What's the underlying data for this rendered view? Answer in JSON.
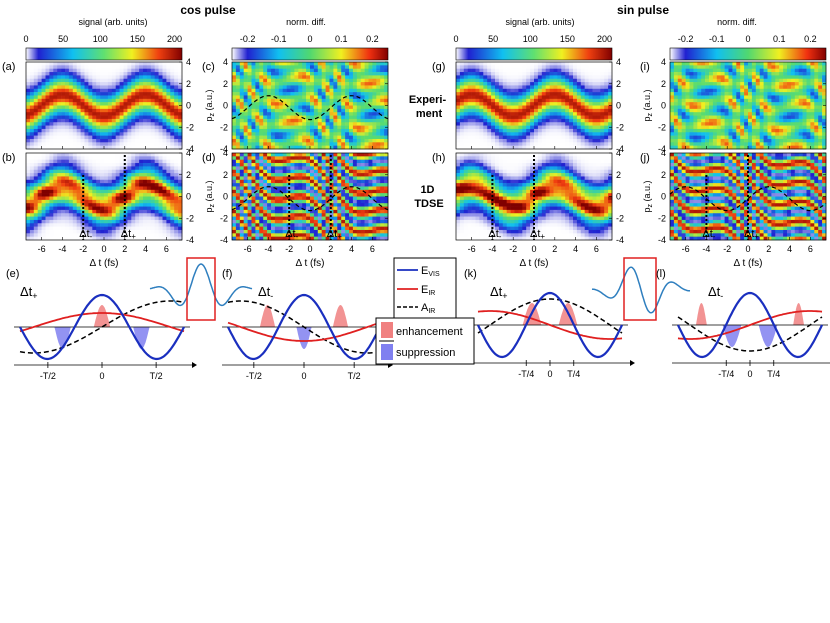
{
  "figure": {
    "title_cos": "cos pulse",
    "title_sin": "sin pulse",
    "row_label_exp": "Experi-\nment",
    "row_label_tdse": "1D\nTDSE"
  },
  "colorbars": {
    "signal": {
      "label": "signal (arb. units)",
      "ticks": [
        "0",
        "50",
        "100",
        "150",
        "200"
      ],
      "range": [
        0,
        210
      ]
    },
    "diff": {
      "label": "norm. diff.",
      "ticks": [
        "-0.2",
        "-0.1",
        "0",
        "0.1",
        "0.2"
      ],
      "range": [
        -0.25,
        0.25
      ]
    }
  },
  "panel_labels": [
    "(a)",
    "(b)",
    "(c)",
    "(d)",
    "(e)",
    "(f)",
    "(g)",
    "(h)",
    "(i)",
    "(j)",
    "(k)",
    "(l)"
  ],
  "axes": {
    "x_ticks": [
      "-6",
      "-4",
      "-2",
      "0",
      "2",
      "4",
      "6"
    ],
    "x_label": "Δ t (fs)",
    "y_ticks": [
      "4",
      "2",
      "0",
      "-2",
      "-4"
    ],
    "y_label": "p",
    "y_label_sub": "z",
    "y_label_unit": " (a.u.)"
  },
  "markers": {
    "dt_minus": "Δt",
    "dt_minus_sub": "-",
    "dt_plus": "Δt",
    "dt_plus_sub": "+"
  },
  "schematic": {
    "ticks_cos": [
      "-T/2",
      "0",
      "T/2"
    ],
    "ticks_sin": [
      "-T/4",
      "0",
      "T/4"
    ]
  },
  "legend": {
    "evis": "E",
    "evis_sub": "VIS",
    "eir": "E",
    "eir_sub": "IR",
    "air": "A",
    "air_sub": "IR",
    "enhancement": "enhancement",
    "suppression": "suppression"
  },
  "colors": {
    "evis": "#1a2fbf",
    "eir": "#e02020",
    "air": "#000000",
    "enhancement": "#f08080",
    "suppression": "#8080f0",
    "box": "#e02020",
    "pulse": "#2f7fbf"
  },
  "chart_data": [
    {
      "type": "heatmap",
      "panel": "(a)",
      "title": "cos pulse – Experiment signal",
      "xlabel": "Δ t (fs)",
      "ylabel": "p_z (a.u.)",
      "xlim": [
        -7.5,
        7.5
      ],
      "ylim": [
        -4,
        4
      ],
      "colorbar": "signal (arb. units)",
      "zlim": [
        0,
        210
      ]
    },
    {
      "type": "heatmap",
      "panel": "(b)",
      "title": "cos pulse – 1D TDSE signal",
      "xlabel": "Δ t (fs)",
      "ylabel": "p_z (a.u.)",
      "xlim": [
        -7.5,
        7.5
      ],
      "ylim": [
        -4,
        4
      ],
      "markers": {
        "dt_minus": -2,
        "dt_plus": 2
      }
    },
    {
      "type": "heatmap",
      "panel": "(c)",
      "title": "cos pulse – Experiment norm. diff.",
      "xlabel": "Δ t (fs)",
      "ylabel": "p_z (a.u.)",
      "xlim": [
        -7.5,
        7.5
      ],
      "ylim": [
        -4,
        4
      ],
      "colorbar": "norm. diff.",
      "zlim": [
        -0.25,
        0.25
      ],
      "overlay": "dashed A_IR"
    },
    {
      "type": "heatmap",
      "panel": "(d)",
      "title": "cos pulse – 1D TDSE norm. diff.",
      "xlabel": "Δ t (fs)",
      "ylabel": "p_z (a.u.)",
      "xlim": [
        -7.5,
        7.5
      ],
      "ylim": [
        -4,
        4
      ],
      "markers": {
        "dt_minus": -2,
        "dt_plus": 2
      }
    },
    {
      "type": "heatmap",
      "panel": "(g)",
      "title": "sin pulse – Experiment signal",
      "xlabel": "Δ t (fs)",
      "ylabel": "p_z (a.u.)",
      "xlim": [
        -7.5,
        7.5
      ],
      "ylim": [
        -4,
        4
      ]
    },
    {
      "type": "heatmap",
      "panel": "(h)",
      "title": "sin pulse – 1D TDSE signal",
      "xlabel": "Δ t (fs)",
      "ylabel": "p_z (a.u.)",
      "xlim": [
        -7.5,
        7.5
      ],
      "ylim": [
        -4,
        4
      ],
      "markers": {
        "dt_minus": -4,
        "dt_plus": 0
      }
    },
    {
      "type": "heatmap",
      "panel": "(i)",
      "title": "sin pulse – Experiment norm. diff.",
      "xlabel": "Δ t (fs)",
      "ylabel": "p_z (a.u.)",
      "xlim": [
        -7.5,
        7.5
      ],
      "ylim": [
        -4,
        4
      ]
    },
    {
      "type": "heatmap",
      "panel": "(j)",
      "title": "sin pulse – 1D TDSE norm. diff.",
      "xlabel": "Δ t (fs)",
      "ylabel": "p_z (a.u.)",
      "xlim": [
        -7.5,
        7.5
      ],
      "ylim": [
        -4,
        4
      ],
      "markers": {
        "dt_minus": -4,
        "dt_plus": 0
      }
    },
    {
      "type": "line",
      "panel": "(e)",
      "title": "Δt+ schematic (cos)",
      "series": [
        "E_VIS",
        "E_IR",
        "A_IR"
      ],
      "xticks": [
        "-T/2",
        "0",
        "T/2"
      ]
    },
    {
      "type": "line",
      "panel": "(f)",
      "title": "Δt- schematic (cos)",
      "series": [
        "E_VIS",
        "E_IR",
        "A_IR"
      ],
      "xticks": [
        "-T/2",
        "0",
        "T/2"
      ]
    },
    {
      "type": "line",
      "panel": "(k)",
      "title": "Δt+ schematic (sin)",
      "series": [
        "E_VIS",
        "E_IR",
        "A_IR"
      ],
      "xticks": [
        "-T/4",
        "0",
        "T/4"
      ]
    },
    {
      "type": "line",
      "panel": "(l)",
      "title": "Δt- schematic (sin)",
      "series": [
        "E_VIS",
        "E_IR",
        "A_IR"
      ],
      "xticks": [
        "-T/4",
        "0",
        "T/4"
      ]
    }
  ]
}
